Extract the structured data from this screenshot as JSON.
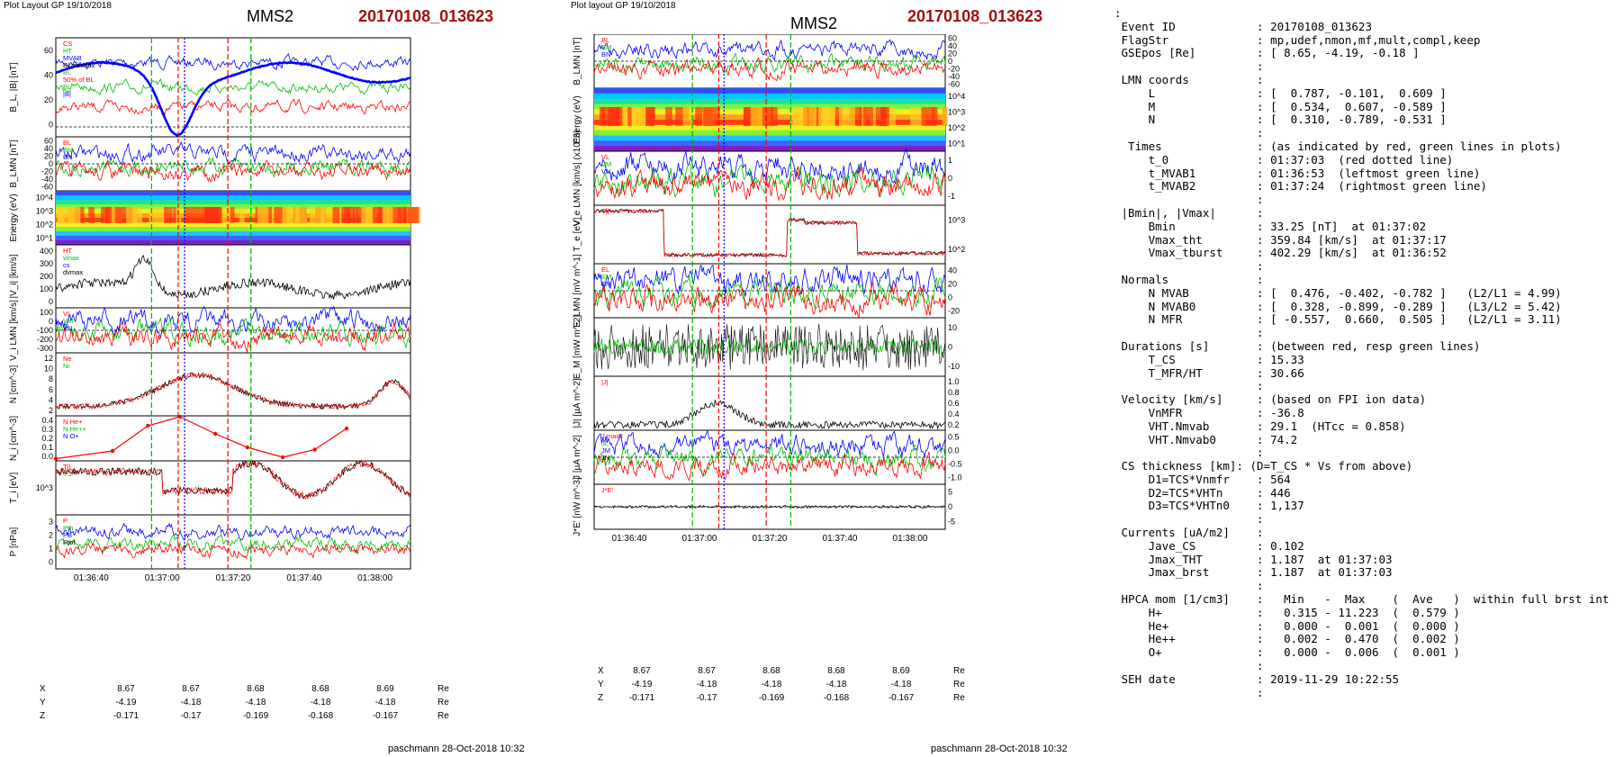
{
  "left_plot": {
    "header": "Plot Layout GP 19/10/2018",
    "spacecraft": "MMS2",
    "event": "20170108_013623",
    "footer": "paschmann 28-Oct-2018 10:32",
    "panels": [
      {
        "id": "B",
        "ylabel": "B_L, |B| [nT]",
        "yticks": [
          "60",
          "40",
          "20",
          "0"
        ],
        "legend": [
          "CS",
          "HT",
          "MVAB",
          "BLminmax",
          "BL",
          "50% of BL",
          "BL",
          "|B|"
        ]
      },
      {
        "id": "BLMN",
        "ylabel": "B_LMN [nT]",
        "yticks": [
          "60",
          "40",
          "20",
          "0",
          "-20",
          "-40",
          "-60"
        ],
        "legend": [
          "BL",
          "BM",
          "BN"
        ]
      },
      {
        "id": "Espec",
        "ylabel": "Energy (eV)",
        "yticks": [
          "10^4",
          "10^3",
          "10^2",
          "10^1"
        ]
      },
      {
        "id": "Vi",
        "ylabel": "|V_i| [km/s]",
        "yticks": [
          "400",
          "300",
          "200",
          "100",
          "0"
        ],
        "legend": [
          "HT",
          "vmax",
          "cs",
          "dvmax"
        ]
      },
      {
        "id": "ViLMN",
        "ylabel": "V_i LMN [km/s]",
        "yticks": [
          "100",
          "0",
          "-100",
          "-200",
          "-300"
        ],
        "legend": [
          "VL",
          "VM",
          "VN"
        ]
      },
      {
        "id": "N",
        "ylabel": "N [cm^-3]",
        "yticks": [
          "12",
          "10",
          "8",
          "6",
          "4",
          "2"
        ],
        "legend": [
          "Ne",
          "Ni"
        ]
      },
      {
        "id": "Ni",
        "ylabel": "N_i [cm^-3]",
        "yticks": [
          "0.4",
          "0.3",
          "0.2",
          "0.1",
          "0.0"
        ],
        "legend": [
          "N He+",
          "N He++",
          "N O+"
        ]
      },
      {
        "id": "Ti",
        "ylabel": "T_i [eV]",
        "yticks": [
          "10^3"
        ],
        "legend": [
          "T||",
          "T⊥"
        ]
      },
      {
        "id": "P",
        "ylabel": "P [nPa]",
        "yticks": [
          "3",
          "2",
          "1",
          "0"
        ],
        "legend": [
          "P",
          "Pth",
          "PB",
          "Ptot"
        ]
      }
    ],
    "xticks": [
      "01:36:40",
      "01:37:00",
      "01:37:20",
      "01:37:40",
      "01:38:00"
    ],
    "coords": {
      "labels": [
        "X",
        "Y",
        "Z"
      ],
      "unit": "Re",
      "rows": [
        [
          "8.67",
          "8.67",
          "8.68",
          "8.68",
          "8.69"
        ],
        [
          "-4.19",
          "-4.18",
          "-4.18",
          "-4.18",
          "-4.18"
        ],
        [
          "-0.171",
          "-0.17",
          "-0.169",
          "-0.168",
          "-0.167"
        ]
      ]
    }
  },
  "mid_plot": {
    "header": "Plot layout GP 19/10/2018",
    "spacecraft": "MMS2",
    "event": "20170108_013623",
    "footer": "paschmann 28-Oct-2018 10:32",
    "panels": [
      {
        "id": "BLMN",
        "ylabel": "B_LMN [nT]",
        "yticks": [
          "60",
          "40",
          "20",
          "0",
          "-20",
          "-40",
          "-60"
        ],
        "legend": [
          "BL",
          "BM",
          "BN"
        ]
      },
      {
        "id": "Espec",
        "ylabel": "Energy (eV)",
        "yticks": [
          "10^4",
          "10^3",
          "10^2",
          "10^1"
        ]
      },
      {
        "id": "Ve",
        "ylabel": "V_e LMN [km/s] (x10^3)",
        "yticks": [
          "1",
          "0",
          "-1"
        ],
        "legend": [
          "VL",
          "VM",
          "VN"
        ]
      },
      {
        "id": "Te",
        "ylabel": "T_e [eV]",
        "yticks": [
          "10^3",
          "10^2"
        ],
        "legend": [
          "T||"
        ]
      },
      {
        "id": "E",
        "ylabel": "E_LMN [mV m^-1]",
        "yticks": [
          "40",
          "20",
          "0",
          "-20"
        ],
        "legend": [
          "EL",
          "EM",
          "EN"
        ]
      },
      {
        "id": "EM",
        "ylabel": "E_M [mW m^-2]",
        "yticks": [
          "10",
          "0",
          "-10"
        ]
      },
      {
        "id": "J",
        "ylabel": "|J| [µA m^-2]",
        "yticks": [
          "1.0",
          "0.8",
          "0.6",
          "0.4",
          "0.2"
        ],
        "legend": [
          "|J|"
        ]
      },
      {
        "id": "JLMN",
        "ylabel": "J [µA m^-2]",
        "yticks": [
          "0.5",
          "0.0",
          "-0.5",
          "-1.0"
        ],
        "legend": [
          "J maxJ",
          "JL",
          "JM",
          "JN"
        ]
      },
      {
        "id": "JE",
        "ylabel": "J*E' [nW m^-3]",
        "yticks": [
          "5",
          "0",
          "-5"
        ],
        "legend": [
          "J*E'"
        ]
      }
    ],
    "xticks": [
      "01:36:40",
      "01:37:00",
      "01:37:20",
      "01:37:40",
      "01:38:00"
    ],
    "coords": {
      "labels": [
        "X",
        "Y",
        "Z"
      ],
      "unit": "Re",
      "rows": [
        [
          "8.67",
          "8.67",
          "8.68",
          "8.68",
          "8.69"
        ],
        [
          "-4.19",
          "-4.18",
          "-4.18",
          "-4.18",
          "-4.18"
        ],
        [
          "-0.171",
          "-0.17",
          "-0.169",
          "-0.168",
          "-0.167"
        ]
      ]
    }
  },
  "info_lines": [
    ":",
    " Event ID            : 20170108_013623",
    " FlagStr             : mp,udef,nmon,mf,mult,compl,keep",
    " GSEpos [Re]         : [ 8.65, -4.19, -0.18 ]",
    "                     :",
    " LMN coords          :",
    "     L               : [  0.787, -0.101,  0.609 ]",
    "     M               : [  0.534,  0.607, -0.589 ]",
    "     N               : [  0.310, -0.789, -0.531 ]",
    "                     :",
    "  Times              : (as indicated by red, green lines in plots)",
    "     t_0             : 01:37:03  (red dotted line)",
    "     t_MVAB1         : 01:36:53  (leftmost green line)",
    "     t_MVAB2         : 01:37:24  (rightmost green line)",
    "                     :",
    " |Bmin|, |Vmax|      :",
    "     Bmin            : 33.25 [nT]  at 01:37:02",
    "     Vmax_tht        : 359.84 [km/s]  at 01:37:17",
    "     Vmax_tburst     : 402.29 [km/s]  at 01:36:52",
    "                     :",
    " Normals             :",
    "     N MVAB          : [  0.476, -0.402, -0.782 ]   (L2/L1 = 4.99)",
    "     N MVAB0         : [  0.328, -0.899, -0.289 ]   (L3/L2 = 5.42)",
    "     N MFR           : [ -0.557,  0.660,  0.505 ]   (L2/L1 = 3.11)",
    "                     :",
    " Durations [s]       : (between red, resp green lines)",
    "     T_CS            : 15.33",
    "     T_MFR/HT        : 30.66",
    "                     :",
    " Velocity [km/s]     : (based on FPI ion data)",
    "     VnMFR           : -36.8",
    "     VHT.Nmvab       : 29.1  (HTcc = 0.858)",
    "     VHT.Nmvab0      : 74.2",
    "                     :",
    " CS thickness [km]: (D=T_CS * Vs from above)",
    "     D1=TCS*Vnmfr    : 564",
    "     D2=TCS*VHTn     : 446",
    "     D3=TCS*VHTn0    : 1,137",
    "                     :",
    " Currents [uA/m2]    :",
    "     Jave_CS         : 0.102",
    "     Jmax_THT        : 1.187  at 01:37:03",
    "     Jmax_brst       : 1.187  at 01:37:03",
    "                     :",
    " HPCA mom [1/cm3]    :   Min   -  Max    (  Ave   )  within full brst int",
    "     H+              :   0.315 - 11.223  (  0.579 )",
    "     He+             :   0.000 -  0.001  (  0.000 )",
    "     He++            :   0.002 -  0.470  (  0.002 )",
    "     O+              :   0.000 -  0.006  (  0.001 )",
    "                     :",
    " SEH date            : 2019-11-29 10:22:55",
    "                     :"
  ],
  "colors": {
    "red": "#ff0000",
    "green": "#00c000",
    "blue": "#0000ff",
    "black": "#000000",
    "darkred": "#a01010",
    "gray": "#808080"
  }
}
